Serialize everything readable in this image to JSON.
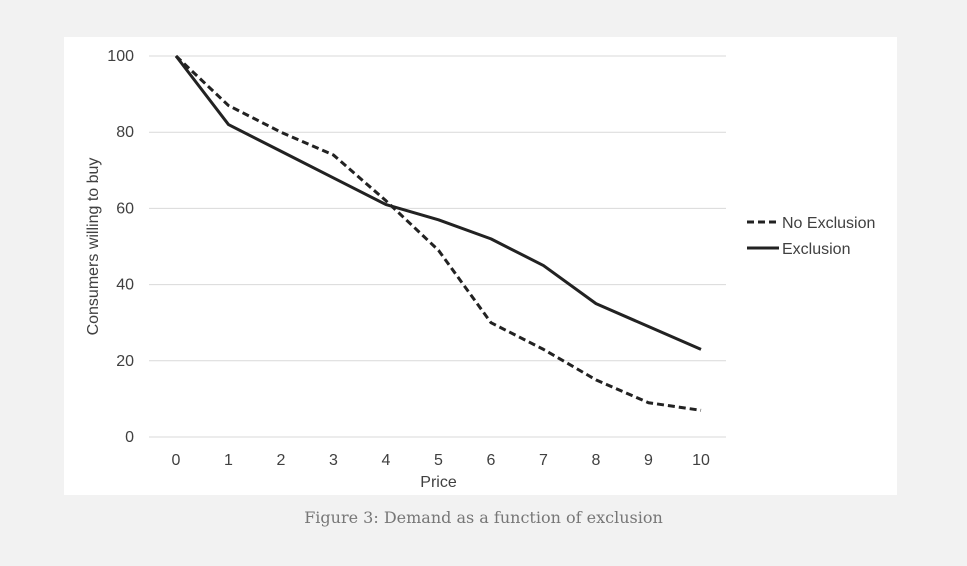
{
  "chart_data": {
    "type": "line",
    "x": [
      0,
      1,
      2,
      3,
      4,
      5,
      6,
      7,
      8,
      9,
      10
    ],
    "series": [
      {
        "name": "No Exclusion",
        "values": [
          100,
          87,
          80,
          74,
          62,
          49,
          30,
          23,
          15,
          9,
          7
        ],
        "line_style": "dashed",
        "color": "#222222"
      },
      {
        "name": "Exclusion",
        "values": [
          100,
          82,
          75,
          68,
          61,
          57,
          52,
          45,
          35,
          29,
          23
        ],
        "line_style": "solid",
        "color": "#222222"
      }
    ],
    "title": "",
    "xlabel": "Price",
    "ylabel": "Consumers willing to buy",
    "xticks": [
      "0",
      "1",
      "2",
      "3",
      "4",
      "5",
      "6",
      "7",
      "8",
      "9",
      "10"
    ],
    "yticks": [
      "0",
      "20",
      "40",
      "60",
      "80",
      "100"
    ],
    "ylim": [
      0,
      100
    ],
    "xlim": [
      0,
      10
    ],
    "grid": "horizontal",
    "legend_position": "right"
  },
  "caption": "Figure 3: Demand as a function of exclusion",
  "colors": {
    "page_background": "#f2f2f2",
    "chart_background": "#ffffff",
    "gridline": "#d9d9d9",
    "text": "#404040",
    "caption": "#777777"
  }
}
